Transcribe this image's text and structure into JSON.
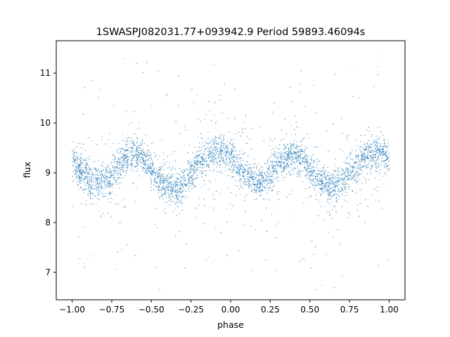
{
  "chart_data": {
    "type": "scatter",
    "title": "1SWASPJ082031.77+093942.9 Period 59893.46094s",
    "xlabel": "phase",
    "ylabel": "flux",
    "xlim": [
      -1.1,
      1.1
    ],
    "ylim": [
      6.45,
      11.65
    ],
    "grid": false,
    "legend": "none",
    "x_ticks": [
      -1.0,
      -0.75,
      -0.5,
      -0.25,
      0.0,
      0.25,
      0.5,
      0.75,
      1.0
    ],
    "x_tick_labels": [
      "−1.00",
      "−0.75",
      "−0.50",
      "−0.25",
      "0.00",
      "0.25",
      "0.50",
      "0.75",
      "1.00"
    ],
    "y_ticks": [
      7,
      8,
      9,
      10,
      11
    ],
    "y_tick_labels": [
      "7",
      "8",
      "9",
      "10",
      "11"
    ],
    "series": [
      {
        "color": "#1f77b4",
        "marker": "dot",
        "x": [
          -1.0,
          -0.95,
          -0.9,
          -0.85,
          -0.8,
          -0.75,
          -0.7,
          -0.65,
          -0.6,
          -0.55,
          -0.5,
          -0.45,
          -0.4,
          -0.35,
          -0.3,
          -0.25,
          -0.2,
          -0.15,
          -0.1,
          -0.05,
          0.0,
          0.05,
          0.1,
          0.15,
          0.2,
          0.25,
          0.3,
          0.35,
          0.4,
          0.45,
          0.5,
          0.55,
          0.6,
          0.65,
          0.7,
          0.75,
          0.8,
          0.85,
          0.9,
          0.95,
          1.0
        ],
        "y": [
          9.3,
          9.05,
          8.9,
          8.8,
          8.8,
          8.95,
          9.2,
          9.35,
          9.4,
          9.3,
          9.05,
          8.85,
          8.75,
          8.7,
          8.75,
          8.95,
          9.2,
          9.35,
          9.4,
          9.4,
          9.3,
          9.1,
          8.95,
          8.8,
          8.8,
          9.0,
          9.2,
          9.3,
          9.4,
          9.3,
          9.05,
          8.85,
          8.75,
          8.7,
          8.8,
          9.0,
          9.15,
          9.3,
          9.4,
          9.4,
          9.3
        ]
      }
    ]
  }
}
